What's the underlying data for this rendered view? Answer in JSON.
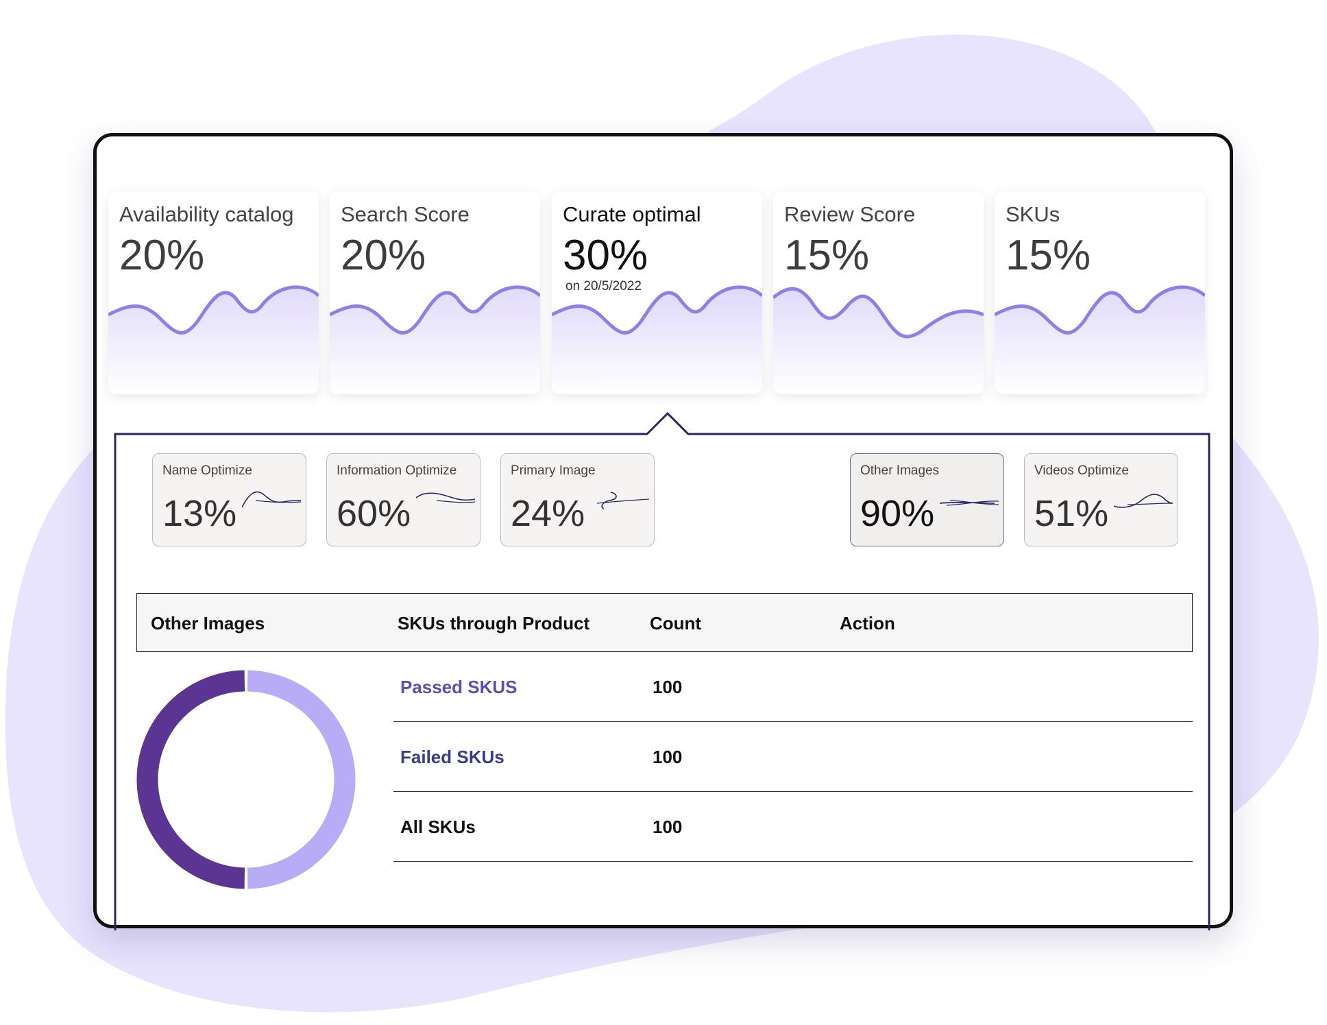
{
  "colors": {
    "blob": "#e8e4fd",
    "wave_stroke": "#8f7fe8",
    "wave_fill": "#c9bdf8",
    "panel_border": "#2a2560",
    "donut_dark": "#5b3591",
    "donut_light": "#b9acf6"
  },
  "metrics": [
    {
      "title": "Availability catalog",
      "value": "20%",
      "sub": ""
    },
    {
      "title": "Search Score",
      "value": "20%",
      "sub": ""
    },
    {
      "title": "Curate optimal",
      "value": "30%",
      "sub": "on 20/5/2022"
    },
    {
      "title": "Review Score",
      "value": "15%",
      "sub": ""
    },
    {
      "title": "SKUs",
      "value": "15%",
      "sub": ""
    }
  ],
  "sub_metrics": [
    {
      "title": "Name Optimize",
      "value": "13%"
    },
    {
      "title": "Information Optimize",
      "value": "60%"
    },
    {
      "title": "Primary Image",
      "value": "24%"
    },
    {
      "title": "Other Images",
      "value": "90%"
    },
    {
      "title": "Videos Optimize",
      "value": "51%"
    }
  ],
  "table": {
    "headers": [
      "Other Images",
      "SKUs through Product",
      "Count",
      "Action"
    ],
    "rows": [
      {
        "label": "Passed SKUS",
        "count": "100"
      },
      {
        "label": "Failed SKUs",
        "count": "100"
      },
      {
        "label": "All SKUs",
        "count": "100"
      }
    ]
  },
  "donut": {
    "segments": [
      0.5,
      0.5
    ]
  }
}
